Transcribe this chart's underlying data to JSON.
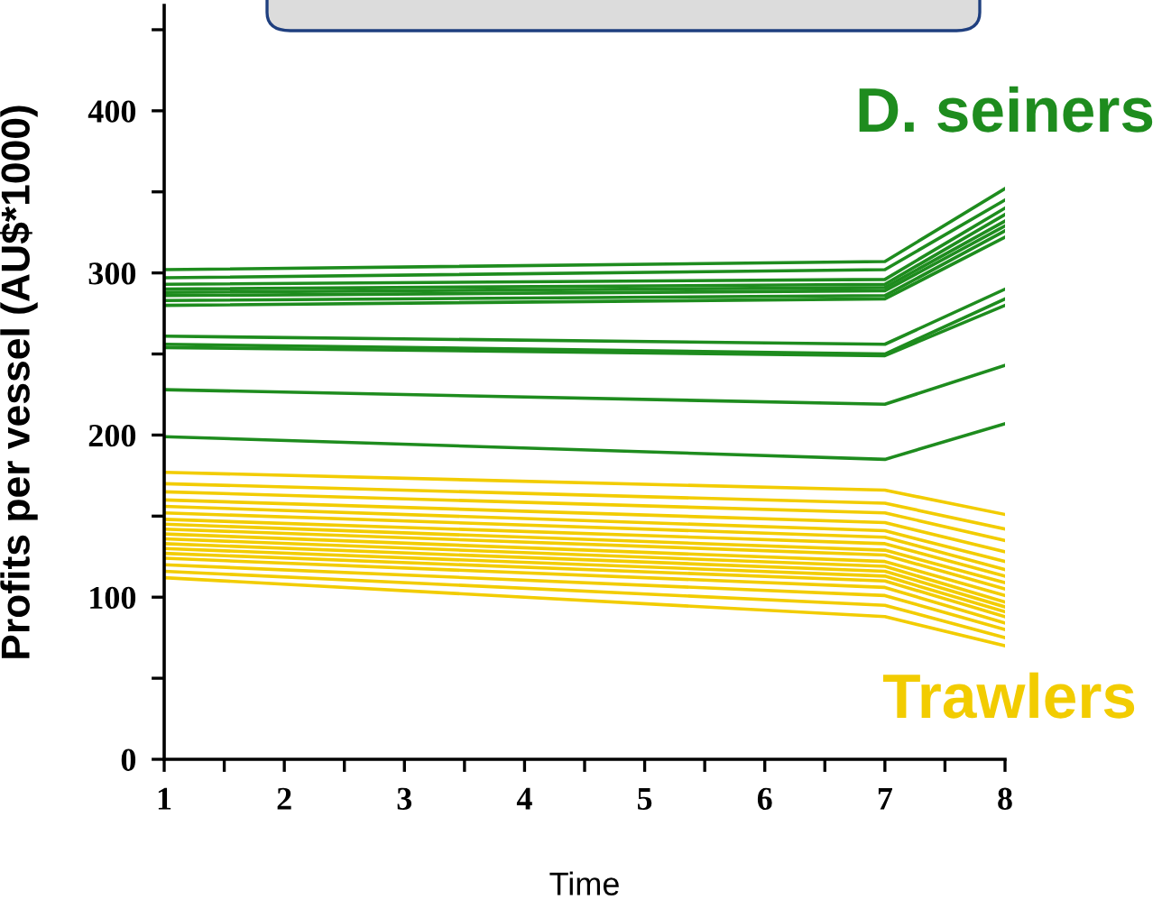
{
  "chart_data": {
    "type": "line",
    "xlabel": "Time",
    "ylabel": "Profits per vessel (AU$*1000)",
    "x": [
      1,
      7,
      8
    ],
    "xlim": [
      1,
      8
    ],
    "ylim": [
      0,
      465
    ],
    "xticks": [
      1,
      {
        "value": 1.5,
        "label": null
      },
      2,
      {
        "value": 2.5,
        "label": null
      },
      3,
      {
        "value": 3.5,
        "label": null
      },
      4,
      {
        "value": 4.5,
        "label": null
      },
      5,
      {
        "value": 5.5,
        "label": null
      },
      6,
      {
        "value": 6.5,
        "label": null
      },
      7,
      {
        "value": 7.5,
        "label": null
      },
      8
    ],
    "yticks": [
      0,
      {
        "value": 50,
        "label": null
      },
      100,
      {
        "value": 150,
        "label": null
      },
      200,
      {
        "value": 250,
        "label": null
      },
      300,
      {
        "value": 350,
        "label": null
      },
      400,
      {
        "value": 450,
        "label": null
      }
    ],
    "grid": false,
    "legend": false,
    "marker": "none",
    "line_style": "solid",
    "series": [
      {
        "name": "D. seiners",
        "color": "#1e8c1e",
        "values": [
          302,
          307,
          352
        ]
      },
      {
        "color": "#1e8c1e",
        "values": [
          297,
          302,
          345
        ]
      },
      {
        "color": "#1e8c1e",
        "values": [
          293,
          296,
          340
        ]
      },
      {
        "color": "#1e8c1e",
        "values": [
          290,
          293,
          336
        ]
      },
      {
        "color": "#1e8c1e",
        "values": [
          288,
          291,
          332
        ]
      },
      {
        "color": "#1e8c1e",
        "values": [
          286,
          289,
          329
        ]
      },
      {
        "color": "#1e8c1e",
        "values": [
          283,
          286,
          326
        ]
      },
      {
        "color": "#1e8c1e",
        "values": [
          280,
          284,
          322
        ]
      },
      {
        "color": "#1e8c1e",
        "values": [
          261,
          256,
          290
        ]
      },
      {
        "color": "#1e8c1e",
        "values": [
          256,
          250,
          284
        ]
      },
      {
        "color": "#1e8c1e",
        "values": [
          254,
          249,
          280
        ]
      },
      {
        "color": "#1e8c1e",
        "values": [
          228,
          219,
          243
        ]
      },
      {
        "color": "#1e8c1e",
        "values": [
          199,
          185,
          207
        ]
      },
      {
        "name": "Trawlers",
        "color": "#f2cc00",
        "values": [
          177,
          166,
          151
        ]
      },
      {
        "color": "#f2cc00",
        "values": [
          170,
          158,
          142
        ]
      },
      {
        "color": "#f2cc00",
        "values": [
          165,
          152,
          135
        ]
      },
      {
        "color": "#f2cc00",
        "values": [
          160,
          146,
          128
        ]
      },
      {
        "color": "#f2cc00",
        "values": [
          156,
          141,
          122
        ]
      },
      {
        "color": "#f2cc00",
        "values": [
          152,
          137,
          117
        ]
      },
      {
        "color": "#f2cc00",
        "values": [
          148,
          133,
          113
        ]
      },
      {
        "color": "#f2cc00",
        "values": [
          145,
          129,
          109
        ]
      },
      {
        "color": "#f2cc00",
        "values": [
          142,
          126,
          105
        ]
      },
      {
        "color": "#f2cc00",
        "values": [
          139,
          122,
          101
        ]
      },
      {
        "color": "#f2cc00",
        "values": [
          136,
          119,
          97
        ]
      },
      {
        "color": "#f2cc00",
        "values": [
          133,
          116,
          94
        ]
      },
      {
        "color": "#f2cc00",
        "values": [
          130,
          113,
          91
        ]
      },
      {
        "color": "#f2cc00",
        "values": [
          127,
          110,
          88
        ]
      },
      {
        "color": "#f2cc00",
        "values": [
          124,
          106,
          84
        ]
      },
      {
        "color": "#f2cc00",
        "values": [
          120,
          101,
          80
        ]
      },
      {
        "color": "#f2cc00",
        "values": [
          116,
          95,
          75
        ]
      },
      {
        "color": "#f2cc00",
        "values": [
          112,
          88,
          70
        ]
      }
    ]
  }
}
